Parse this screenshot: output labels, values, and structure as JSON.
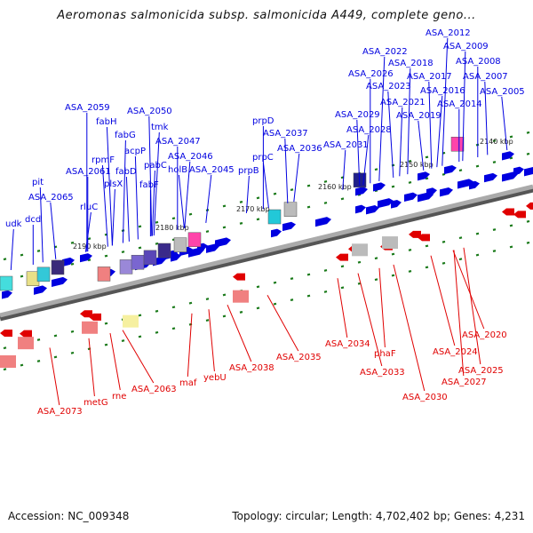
{
  "title": "Aeromonas salmonicida subsp. salmonicida A449, complete geno...",
  "footer": {
    "accession": "Accession: NC_009348",
    "summary": "Topology: circular; Length: 4,702,402 bp; Genes: 4,231"
  },
  "colors": {
    "forward": "#0000e0",
    "reverse": "#e00000",
    "backbone": "#888888",
    "tick": "#1a7a1a"
  },
  "map": {
    "ticks": [
      "2140 kbp",
      "2150 kbp",
      "2160 kbp",
      "2170 kbp",
      "2180 kbp",
      "2190 kbp"
    ],
    "forward_labels": [
      "ASA_2012",
      "ASA_2009",
      "ASA_2008",
      "ASA_2007",
      "ASA_2005",
      "ASA_2022",
      "ASA_2018",
      "ASA_2026",
      "ASA_2017",
      "ASA_2023",
      "ASA_2016",
      "ASA_2021",
      "ASA_2014",
      "ASA_2029",
      "ASA_2019",
      "ASA_2028",
      "ASA_2031",
      "prpD",
      "ASA_2037",
      "prpC",
      "ASA_2036",
      "prpB",
      "ASA_2059",
      "ASA_2050",
      "fabH",
      "tmk",
      "fabG",
      "ASA_2047",
      "acpP",
      "rpmF",
      "ASA_2046",
      "pabC",
      "ASA_2061",
      "fabD",
      "holB",
      "ASA_2045",
      "plsX",
      "fabF",
      "pit",
      "ASA_2065",
      "rluC",
      "udk",
      "dcd"
    ],
    "reverse_labels": [
      "ASA_2020",
      "ASA_2024",
      "ASA_2025",
      "ASA_2027",
      "ASA_2030",
      "ASA_2033",
      "phaF",
      "ASA_2034",
      "ASA_2035",
      "ASA_2038",
      "yebU",
      "maf",
      "ASA_2063",
      "rne",
      "metG",
      "ASA_2073"
    ]
  }
}
